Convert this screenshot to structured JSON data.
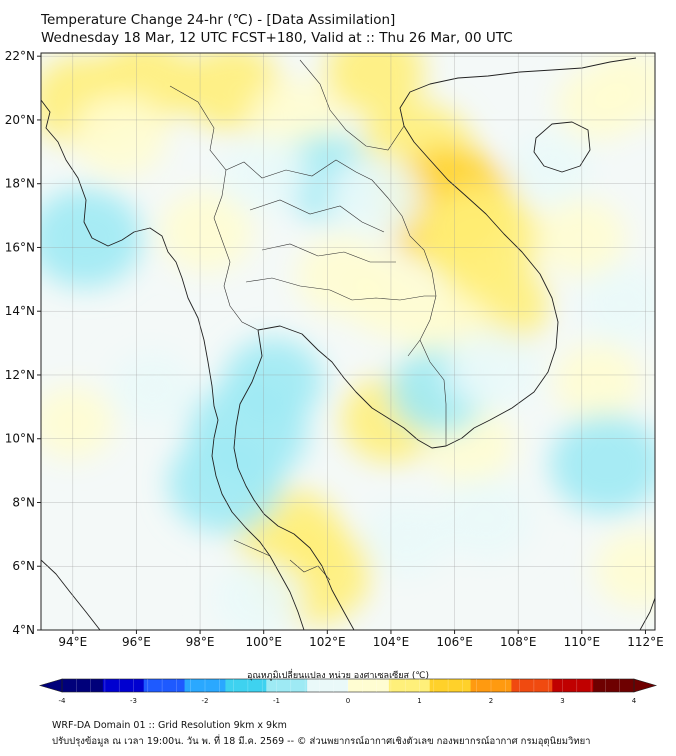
{
  "header": {
    "title_line1": "Temperature Change 24-hr (℃) - [Data Assimilation]",
    "title_line2": "Wednesday 18 Mar, 12 UTC FCST+180, Valid at :: Thu 26 Mar, 00 UTC"
  },
  "map": {
    "lon_range": [
      93,
      112.3
    ],
    "lat_range": [
      4,
      22.1
    ],
    "lat_ticks": [
      {
        "value": 22,
        "label": "22°N"
      },
      {
        "value": 20,
        "label": "20°N"
      },
      {
        "value": 18,
        "label": "18°N"
      },
      {
        "value": 16,
        "label": "16°N"
      },
      {
        "value": 14,
        "label": "14°N"
      },
      {
        "value": 12,
        "label": "12°N"
      },
      {
        "value": 10,
        "label": "10°N"
      },
      {
        "value": 8,
        "label": "8°N"
      },
      {
        "value": 6,
        "label": "6°N"
      },
      {
        "value": 4,
        "label": "4°N"
      }
    ],
    "lon_ticks": [
      {
        "value": 94,
        "label": "94°E"
      },
      {
        "value": 96,
        "label": "96°E"
      },
      {
        "value": 98,
        "label": "98°E"
      },
      {
        "value": 100,
        "label": "100°E"
      },
      {
        "value": 102,
        "label": "102°E"
      },
      {
        "value": 104,
        "label": "104°E"
      },
      {
        "value": 106,
        "label": "106°E"
      },
      {
        "value": 108,
        "label": "108°E"
      },
      {
        "value": 110,
        "label": "110°E"
      },
      {
        "value": 112,
        "label": "112°E"
      }
    ],
    "grid": true,
    "background_color": "#f4f9f8",
    "field_anomalies": [
      {
        "lon": 94.3,
        "lat": 20.6,
        "value": 0.7
      },
      {
        "lon": 96.3,
        "lat": 21.2,
        "value": 0.6
      },
      {
        "lon": 95.5,
        "lat": 19.5,
        "value": 0.5
      },
      {
        "lon": 99.0,
        "lat": 21.0,
        "value": 0.6
      },
      {
        "lon": 101.0,
        "lat": 20.0,
        "value": 0.5
      },
      {
        "lon": 103.5,
        "lat": 21.5,
        "value": 0.6
      },
      {
        "lon": 104.8,
        "lat": 19.0,
        "value": 0.9
      },
      {
        "lon": 105.8,
        "lat": 17.3,
        "value": 1.3
      },
      {
        "lon": 106.8,
        "lat": 16.3,
        "value": 1.0
      },
      {
        "lon": 107.3,
        "lat": 14.2,
        "value": 0.7
      },
      {
        "lon": 102.5,
        "lat": 15.1,
        "value": 0.5
      },
      {
        "lon": 104.0,
        "lat": 14.4,
        "value": 0.4
      },
      {
        "lon": 98.2,
        "lat": 16.5,
        "value": 0.5
      },
      {
        "lon": 101.5,
        "lat": 5.8,
        "value": 1.0
      },
      {
        "lon": 100.8,
        "lat": 7.0,
        "value": 0.7
      },
      {
        "lon": 104.0,
        "lat": 10.6,
        "value": 0.6
      },
      {
        "lon": 106.5,
        "lat": 9.8,
        "value": 0.4
      },
      {
        "lon": 105.7,
        "lat": 13.4,
        "value": 0.4
      },
      {
        "lon": 110.5,
        "lat": 11.8,
        "value": 0.4
      },
      {
        "lon": 111.8,
        "lat": 5.9,
        "value": 0.4
      },
      {
        "lon": 110.0,
        "lat": 16.3,
        "value": 0.4
      },
      {
        "lon": 111.5,
        "lat": 21.0,
        "value": 0.4
      },
      {
        "lon": 94.0,
        "lat": 10.5,
        "value": 0.3
      },
      {
        "lon": 102.0,
        "lat": 18.2,
        "value": -0.6
      },
      {
        "lon": 100.0,
        "lat": 18.3,
        "value": -0.4
      },
      {
        "lon": 103.5,
        "lat": 17.6,
        "value": -0.5
      },
      {
        "lon": 94.4,
        "lat": 16.3,
        "value": -0.9
      },
      {
        "lon": 99.5,
        "lat": 10.2,
        "value": -1.0
      },
      {
        "lon": 98.8,
        "lat": 8.6,
        "value": -0.9
      },
      {
        "lon": 100.3,
        "lat": 11.8,
        "value": -0.6
      },
      {
        "lon": 105.5,
        "lat": 11.5,
        "value": -0.6
      },
      {
        "lon": 107.2,
        "lat": 12.2,
        "value": -0.5
      },
      {
        "lon": 110.8,
        "lat": 9.2,
        "value": -0.9
      },
      {
        "lon": 107.0,
        "lat": 7.5,
        "value": -0.5
      },
      {
        "lon": 104.5,
        "lat": 6.9,
        "value": -0.4
      },
      {
        "lon": 111.3,
        "lat": 14.2,
        "value": -0.4
      },
      {
        "lon": 99.8,
        "lat": 5.0,
        "value": -0.4
      },
      {
        "lon": 96.5,
        "lat": 11.6,
        "value": -0.3
      },
      {
        "lon": 109.0,
        "lat": 18.5,
        "value": -0.3
      },
      {
        "lon": 110.5,
        "lat": 20.5,
        "value": 0.3
      }
    ]
  },
  "colorbar": {
    "label": "อุณหภูมิเปลี่ยนแปลง หน่วย องศาเซลเซียส (℃)",
    "range": [
      -4,
      4
    ],
    "tick_labels": [
      "-4",
      "-3",
      "-2",
      "-1",
      "0",
      "1",
      "2",
      "3",
      "4"
    ],
    "extend": "both",
    "colors": [
      "#00007a",
      "#0000d0",
      "#1e5aff",
      "#2aa8ff",
      "#3ed2f0",
      "#9eeaf4",
      "#eaf9f9",
      "#fffdd2",
      "#fff07a",
      "#ffd12a",
      "#ff9a10",
      "#f04a10",
      "#c00000",
      "#6e0000"
    ]
  },
  "footer": {
    "line1": "WRF-DA Domain 01 :: Grid Resolution 9km x 9km",
    "line2": "ปรับปรุงข้อมูล ณ เวลา 19:00น. วัน พ. ที่ 18 มี.ค. 2569 -- © ส่วนพยากรณ์อากาศเชิงตัวเลข กองพยากรณ์อากาศ กรมอุตุนิยมวิทยา"
  }
}
